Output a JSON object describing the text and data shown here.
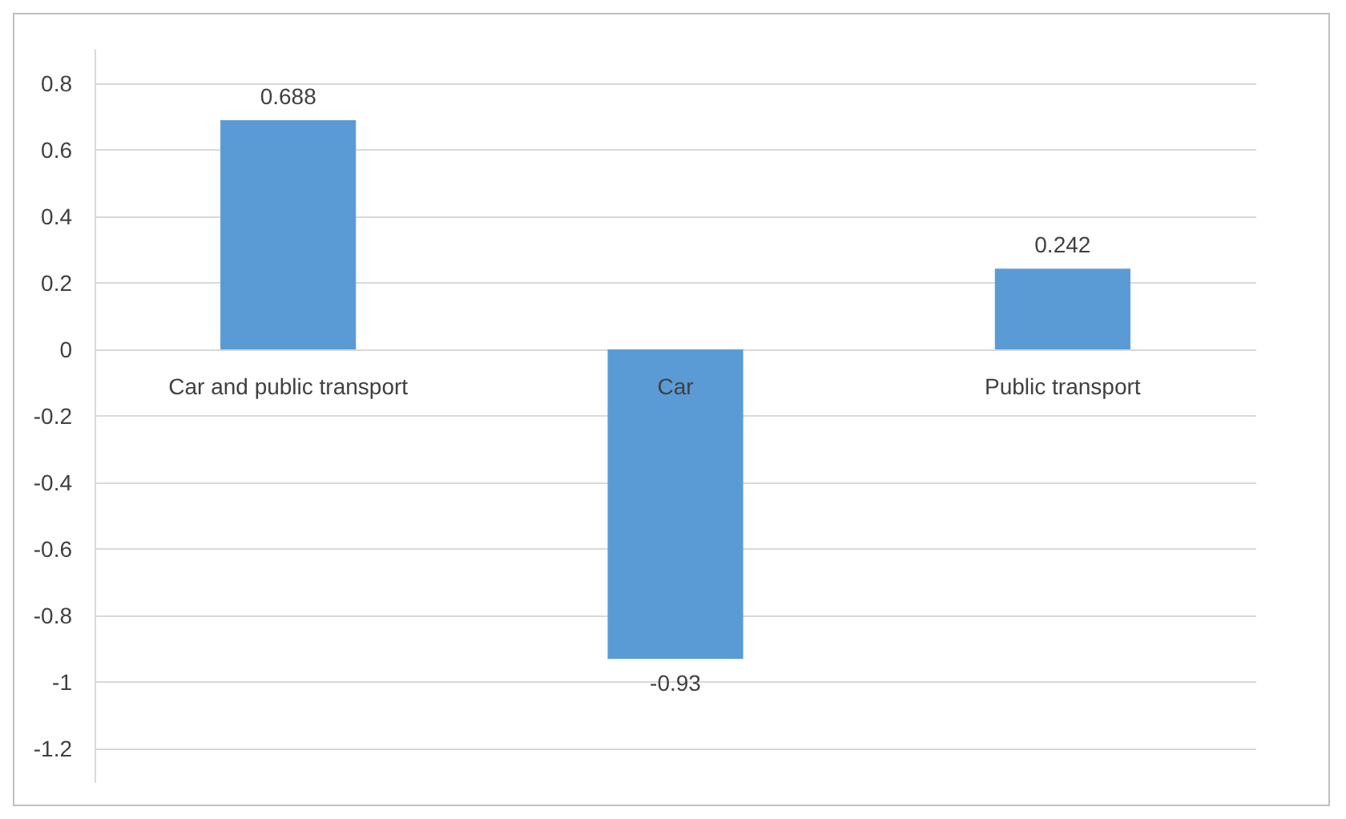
{
  "chart_data": {
    "type": "bar",
    "categories": [
      "Car and public transport",
      "Car",
      "Public transport"
    ],
    "values": [
      0.688,
      -0.93,
      0.242
    ],
    "color": "#5b9bd5",
    "ylim": [
      -1.3,
      0.9
    ],
    "yticks": [
      -1.2,
      -1,
      -0.8,
      -0.6,
      -0.4,
      -0.2,
      0,
      0.2,
      0.4,
      0.6,
      0.8
    ],
    "grid": "y",
    "data_labels": true
  }
}
